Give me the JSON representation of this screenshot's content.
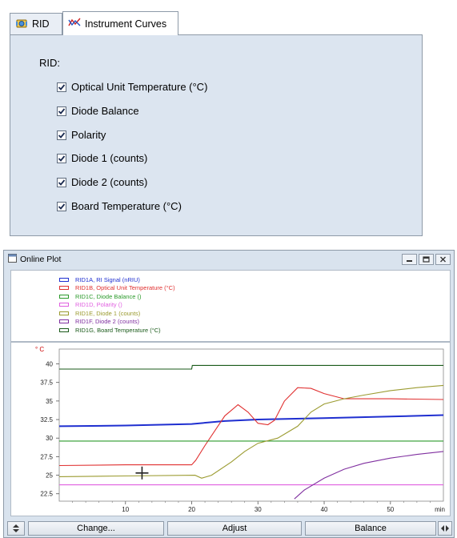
{
  "tabs": [
    {
      "label": "RID"
    },
    {
      "label": "Instrument Curves"
    }
  ],
  "panel": {
    "heading": "RID:",
    "checkboxes": [
      {
        "label": "Optical Unit Temperature (°C)",
        "checked": true
      },
      {
        "label": "Diode Balance",
        "checked": true
      },
      {
        "label": "Polarity",
        "checked": true
      },
      {
        "label": "Diode 1 (counts)",
        "checked": true
      },
      {
        "label": "Diode 2 (counts)",
        "checked": true
      },
      {
        "label": "Board Temperature (°C)",
        "checked": true
      }
    ]
  },
  "plot_window": {
    "title": "Online Plot",
    "buttons": {
      "change": "Change...",
      "adjust": "Adjust",
      "balance": "Balance"
    }
  },
  "chart_data": {
    "type": "line",
    "y_unit": "°C",
    "y_unit_top": "° C",
    "x_unit": "min",
    "xlim": [
      0,
      58
    ],
    "ylim": [
      21.5,
      42
    ],
    "xticks": [
      10,
      20,
      30,
      40,
      50
    ],
    "yticks": [
      22.5,
      25,
      27.5,
      30,
      32.5,
      35,
      37.5,
      40
    ],
    "ytick_labels": [
      "22.5",
      "25",
      "27.5",
      "30",
      "32.5",
      "35",
      "37.5",
      "40"
    ],
    "series": [
      {
        "name": "RID1A, RI Signal (nRIU)",
        "color": "#1f2fd0",
        "x": [
          0,
          10,
          20,
          25,
          30,
          35,
          40,
          45,
          50,
          58
        ],
        "y": [
          31.6,
          31.7,
          31.9,
          32.3,
          32.5,
          32.6,
          32.7,
          32.8,
          32.9,
          33.1
        ]
      },
      {
        "name": "RID1B, Optical Unit Temperature (°C)",
        "color": "#e03030",
        "x": [
          0,
          10,
          20,
          20.6,
          22,
          25,
          27,
          28.5,
          30,
          31.5,
          32.5,
          34,
          36,
          38,
          40,
          43,
          46,
          50,
          58
        ],
        "y": [
          26.3,
          26.4,
          26.4,
          27,
          29,
          33,
          34.5,
          33.5,
          32,
          31.8,
          32.4,
          35,
          36.8,
          36.7,
          36,
          35.3,
          35.3,
          35.3,
          35.2
        ]
      },
      {
        "name": "RID1C, Diode Balance ()",
        "color": "#2b9a2b",
        "x": [
          0,
          58
        ],
        "y": [
          29.6,
          29.6
        ]
      },
      {
        "name": "RID1D, Polarity ()",
        "color": "#e060e0",
        "x": [
          0,
          58
        ],
        "y": [
          23.7,
          23.7
        ]
      },
      {
        "name": "RID1E, Diode 1 (counts)",
        "color": "#9b9b30",
        "x": [
          0,
          10,
          20.5,
          21.5,
          23,
          26,
          28,
          30,
          33,
          36,
          38,
          40,
          43,
          46,
          50,
          54,
          58
        ],
        "y": [
          24.8,
          24.9,
          25.0,
          24.6,
          25.0,
          26.8,
          28.2,
          29.3,
          30.0,
          31.6,
          33.5,
          34.6,
          35.3,
          35.8,
          36.4,
          36.8,
          37.1
        ]
      },
      {
        "name": "RID1F, Diode 2 (counts)",
        "color": "#8030a0",
        "x": [
          35.5,
          37,
          40,
          43,
          46,
          50,
          54,
          58
        ],
        "y": [
          21.8,
          23.0,
          24.6,
          25.8,
          26.6,
          27.3,
          27.8,
          28.2
        ]
      },
      {
        "name": "RID1G, Board Temperature (°C)",
        "color": "#1a5a1a",
        "x": [
          0,
          20,
          20.1,
          58
        ],
        "y": [
          39.3,
          39.3,
          39.8,
          39.8
        ]
      }
    ]
  }
}
